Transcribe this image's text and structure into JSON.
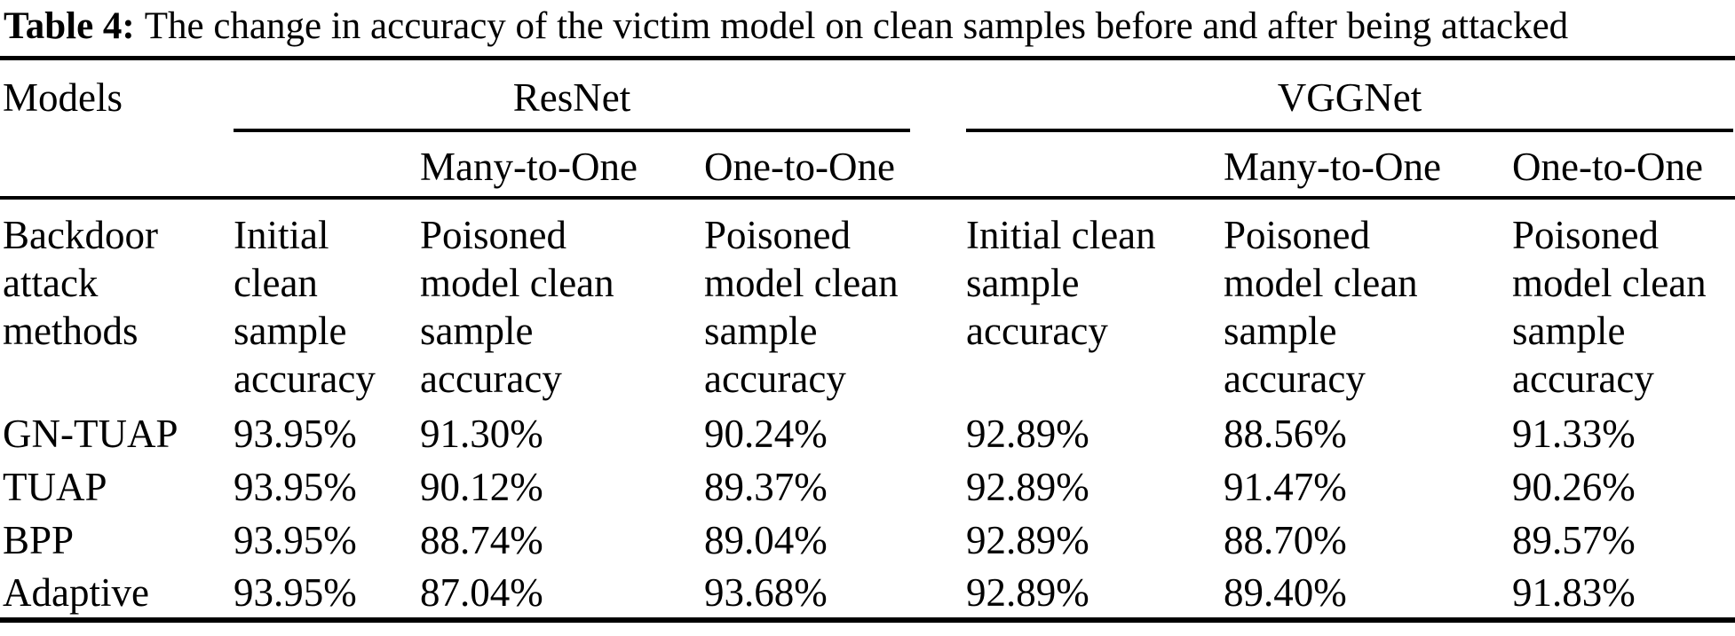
{
  "caption": {
    "label": "Table 4:",
    "text": "The change in accuracy of the victim model on clean samples before and after being attacked"
  },
  "table": {
    "models_header": "Models",
    "groups": [
      {
        "name": "ResNet",
        "subheaders": [
          "Many-to-One",
          "One-to-One"
        ]
      },
      {
        "name": "VGGNet",
        "subheaders": [
          "Many-to-One",
          "One-to-One"
        ]
      }
    ],
    "col_headers": [
      "Backdoor\nattack\nmethods",
      "Initial\nclean\nsample\naccuracy",
      "Poisoned\nmodel clean\nsample\naccuracy",
      "Poisoned\nmodel clean\nsample\naccuracy",
      "Initial clean\nsample\naccuracy",
      "Poisoned\nmodel clean\nsample\naccuracy",
      "Poisoned\nmodel clean\nsample\naccuracy"
    ],
    "rows": [
      {
        "method": "GN-TUAP",
        "values": [
          "93.95%",
          "91.30%",
          "90.24%",
          "92.89%",
          "88.56%",
          "91.33%"
        ]
      },
      {
        "method": "TUAP",
        "values": [
          "93.95%",
          "90.12%",
          "89.37%",
          "92.89%",
          "91.47%",
          "90.26%"
        ]
      },
      {
        "method": "BPP",
        "values": [
          "93.95%",
          "88.74%",
          "89.04%",
          "92.89%",
          "88.70%",
          "89.57%"
        ]
      },
      {
        "method": "Adaptive",
        "values": [
          "93.95%",
          "87.04%",
          "93.68%",
          "92.89%",
          "89.40%",
          "91.83%"
        ]
      }
    ]
  }
}
